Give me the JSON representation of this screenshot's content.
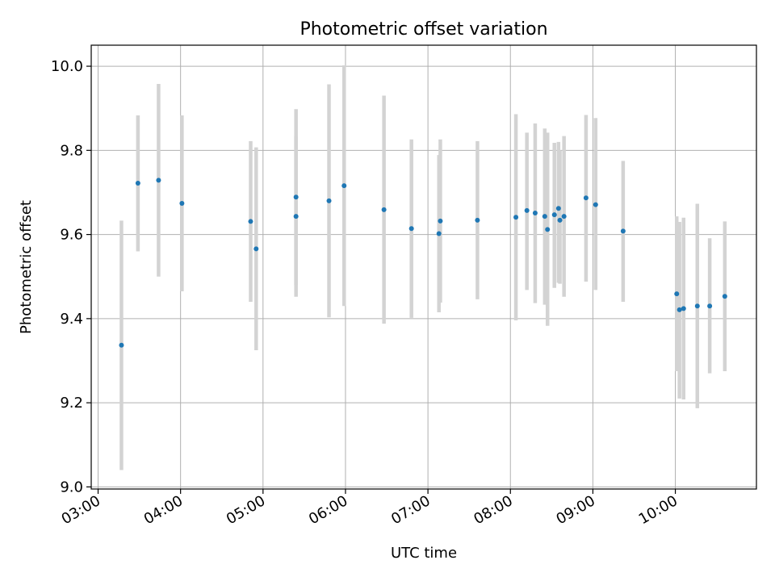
{
  "chart_data": {
    "type": "scatter",
    "title": "Photometric offset variation",
    "xlabel": "UTC time",
    "ylabel": "Photometric offset",
    "x_ticks": [
      "03:00",
      "04:00",
      "05:00",
      "06:00",
      "07:00",
      "08:00",
      "09:00",
      "10:00"
    ],
    "y_ticks": [
      "9.0",
      "9.2",
      "9.4",
      "9.6",
      "9.8",
      "10.0"
    ],
    "xlim": [
      "02:55",
      "10:59"
    ],
    "ylim": [
      8.995,
      10.05
    ],
    "grid": true,
    "point_color": "#1f77b4",
    "errorbar_color": "#d3d3d3",
    "points": [
      {
        "x": "03:17",
        "y": 9.337,
        "low": 9.04,
        "high": 9.633
      },
      {
        "x": "03:29",
        "y": 9.722,
        "low": 9.56,
        "high": 9.883
      },
      {
        "x": "03:44",
        "y": 9.729,
        "low": 9.5,
        "high": 9.958
      },
      {
        "x": "04:01",
        "y": 9.674,
        "low": 9.465,
        "high": 9.883
      },
      {
        "x": "04:51",
        "y": 9.631,
        "low": 9.44,
        "high": 9.822
      },
      {
        "x": "04:55",
        "y": 9.566,
        "low": 9.325,
        "high": 9.807
      },
      {
        "x": "05:24",
        "y": 9.643,
        "low": 9.452,
        "high": 9.834
      },
      {
        "x": "05:24",
        "y": 9.689,
        "low": 9.48,
        "high": 9.898
      },
      {
        "x": "05:48",
        "y": 9.68,
        "low": 9.403,
        "high": 9.957
      },
      {
        "x": "05:59",
        "y": 9.716,
        "low": 9.43,
        "high": 10.002
      },
      {
        "x": "06:28",
        "y": 9.659,
        "low": 9.388,
        "high": 9.93
      },
      {
        "x": "06:48",
        "y": 9.614,
        "low": 9.402,
        "high": 9.826
      },
      {
        "x": "07:08",
        "y": 9.602,
        "low": 9.415,
        "high": 9.789
      },
      {
        "x": "07:09",
        "y": 9.632,
        "low": 9.438,
        "high": 9.826
      },
      {
        "x": "07:36",
        "y": 9.634,
        "low": 9.446,
        "high": 9.822
      },
      {
        "x": "08:04",
        "y": 9.641,
        "low": 9.396,
        "high": 9.886
      },
      {
        "x": "08:12",
        "y": 9.657,
        "low": 9.468,
        "high": 9.842
      },
      {
        "x": "08:18",
        "y": 9.651,
        "low": 9.437,
        "high": 9.864
      },
      {
        "x": "08:25",
        "y": 9.643,
        "low": 9.433,
        "high": 9.852
      },
      {
        "x": "08:27",
        "y": 9.612,
        "low": 9.383,
        "high": 9.842
      },
      {
        "x": "08:32",
        "y": 9.647,
        "low": 9.473,
        "high": 9.818
      },
      {
        "x": "08:35",
        "y": 9.662,
        "low": 9.485,
        "high": 9.82
      },
      {
        "x": "08:36",
        "y": 9.634,
        "low": 9.483,
        "high": 9.8
      },
      {
        "x": "08:39",
        "y": 9.643,
        "low": 9.452,
        "high": 9.834
      },
      {
        "x": "08:55",
        "y": 9.687,
        "low": 9.488,
        "high": 9.884
      },
      {
        "x": "09:02",
        "y": 9.671,
        "low": 9.468,
        "high": 9.877
      },
      {
        "x": "09:22",
        "y": 9.608,
        "low": 9.44,
        "high": 9.775
      },
      {
        "x": "10:01",
        "y": 9.459,
        "low": 9.275,
        "high": 9.643
      },
      {
        "x": "10:03",
        "y": 9.421,
        "low": 9.21,
        "high": 9.63
      },
      {
        "x": "10:06",
        "y": 9.424,
        "low": 9.208,
        "high": 9.64
      },
      {
        "x": "10:16",
        "y": 9.43,
        "low": 9.187,
        "high": 9.673
      },
      {
        "x": "10:25",
        "y": 9.43,
        "low": 9.27,
        "high": 9.591
      },
      {
        "x": "10:36",
        "y": 9.453,
        "low": 9.275,
        "high": 9.631
      }
    ]
  }
}
